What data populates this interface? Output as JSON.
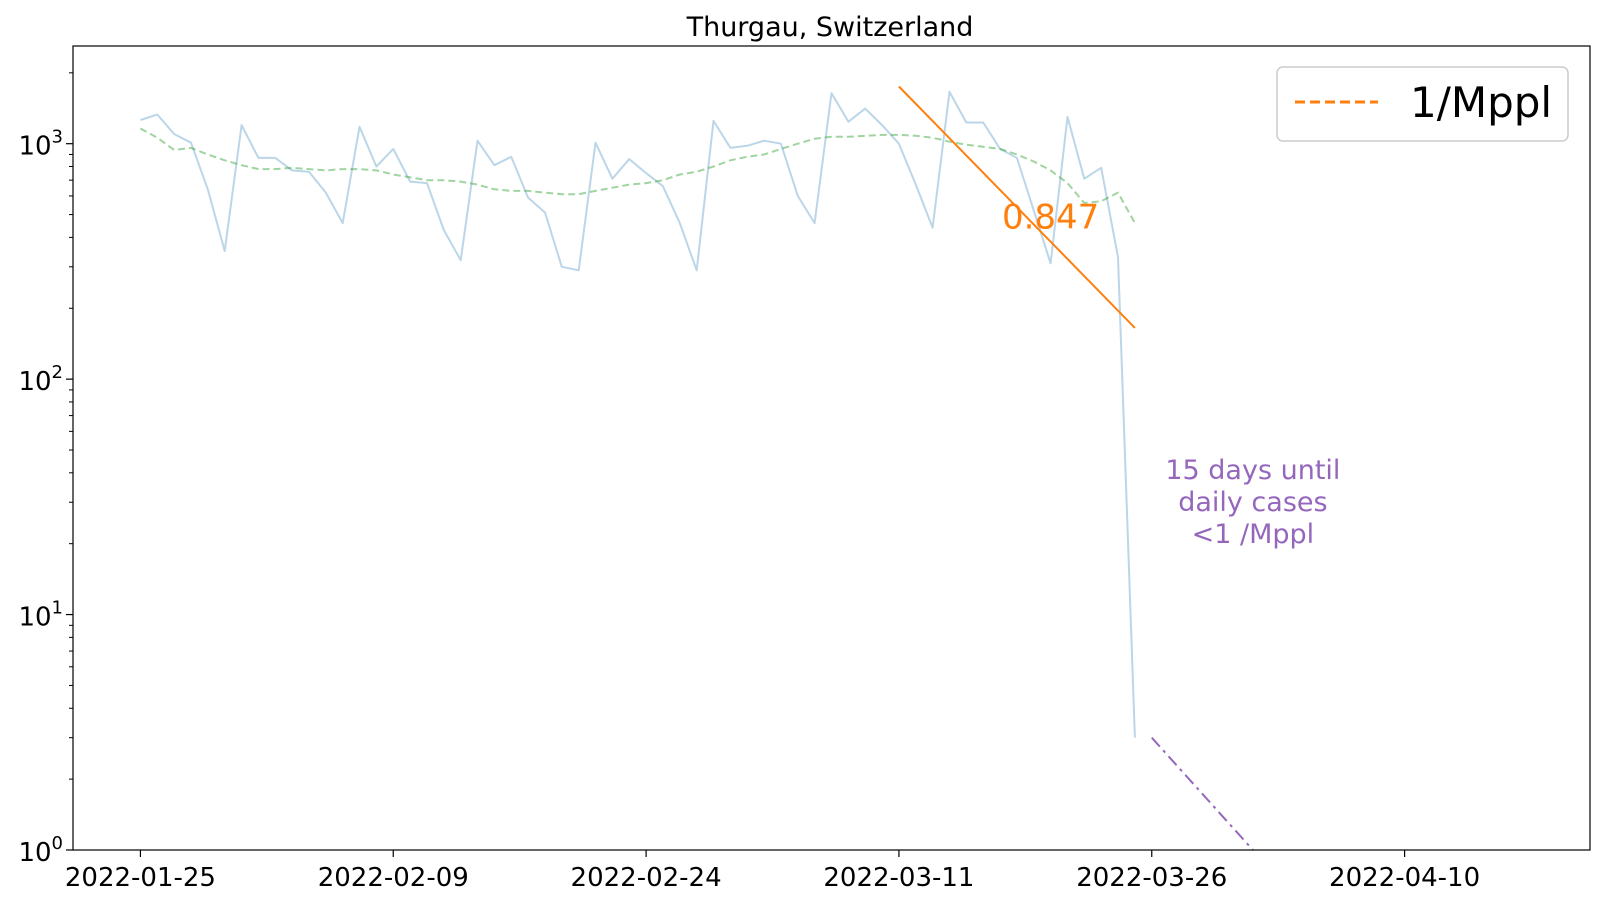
{
  "chart_data": {
    "type": "line",
    "title": "Thurgau, Switzerland",
    "xlabel": "",
    "ylabel": "",
    "y_scale": "log",
    "ylim": [
      1,
      2600
    ],
    "xlim": [
      "2022-01-21",
      "2022-04-21"
    ],
    "grid": false,
    "x_ticks": [
      "2022-01-25",
      "2022-02-09",
      "2022-02-24",
      "2022-03-11",
      "2022-03-26",
      "2022-04-10"
    ],
    "y_ticks": [
      {
        "value": 1,
        "base": "10",
        "exp": "0"
      },
      {
        "value": 10,
        "base": "10",
        "exp": "1"
      },
      {
        "value": 100,
        "base": "10",
        "exp": "2"
      },
      {
        "value": 1000,
        "base": "10",
        "exp": "3"
      }
    ],
    "legend": {
      "position": "top-right",
      "entries": [
        {
          "label": "1/Mppl",
          "color": "#ff7f0e",
          "style": "dashed"
        }
      ]
    },
    "series": [
      {
        "role": "daily cases",
        "color": "#1f77b4",
        "opacity": 0.3,
        "style": "solid",
        "points": [
          [
            "2022-01-25",
            1260
          ],
          [
            "2022-01-26",
            1330
          ],
          [
            "2022-01-27",
            1100
          ],
          [
            "2022-01-28",
            1010
          ],
          [
            "2022-01-29",
            640
          ],
          [
            "2022-01-30",
            350
          ],
          [
            "2022-01-31",
            1200
          ],
          [
            "2022-02-01",
            870
          ],
          [
            "2022-02-02",
            870
          ],
          [
            "2022-02-03",
            770
          ],
          [
            "2022-02-04",
            760
          ],
          [
            "2022-02-05",
            620
          ],
          [
            "2022-02-06",
            460
          ],
          [
            "2022-02-07",
            1180
          ],
          [
            "2022-02-08",
            800
          ],
          [
            "2022-02-09",
            950
          ],
          [
            "2022-02-10",
            690
          ],
          [
            "2022-02-11",
            680
          ],
          [
            "2022-02-12",
            430
          ],
          [
            "2022-02-13",
            320
          ],
          [
            "2022-02-14",
            1030
          ],
          [
            "2022-02-15",
            810
          ],
          [
            "2022-02-16",
            880
          ],
          [
            "2022-02-17",
            590
          ],
          [
            "2022-02-18",
            510
          ],
          [
            "2022-02-19",
            300
          ],
          [
            "2022-02-20",
            290
          ],
          [
            "2022-02-21",
            1010
          ],
          [
            "2022-02-22",
            710
          ],
          [
            "2022-02-23",
            860
          ],
          [
            "2022-02-24",
            750
          ],
          [
            "2022-02-25",
            660
          ],
          [
            "2022-02-26",
            460
          ],
          [
            "2022-02-27",
            290
          ],
          [
            "2022-02-28",
            1250
          ],
          [
            "2022-03-01",
            960
          ],
          [
            "2022-03-02",
            980
          ],
          [
            "2022-03-03",
            1030
          ],
          [
            "2022-03-04",
            1000
          ],
          [
            "2022-03-05",
            600
          ],
          [
            "2022-03-06",
            460
          ],
          [
            "2022-03-07",
            1640
          ],
          [
            "2022-03-08",
            1240
          ],
          [
            "2022-03-09",
            1410
          ],
          [
            "2022-03-10",
            1200
          ],
          [
            "2022-03-11",
            1000
          ],
          [
            "2022-03-12",
            670
          ],
          [
            "2022-03-13",
            440
          ],
          [
            "2022-03-14",
            1660
          ],
          [
            "2022-03-15",
            1230
          ],
          [
            "2022-03-16",
            1230
          ],
          [
            "2022-03-17",
            950
          ],
          [
            "2022-03-18",
            870
          ],
          [
            "2022-03-19",
            520
          ],
          [
            "2022-03-20",
            310
          ],
          [
            "2022-03-21",
            1300
          ],
          [
            "2022-03-22",
            710
          ],
          [
            "2022-03-23",
            790
          ],
          [
            "2022-03-24",
            330
          ],
          [
            "2022-03-25",
            3
          ]
        ]
      },
      {
        "role": "7-day average",
        "color": "#2ca02c",
        "opacity": 0.45,
        "style": "dashed",
        "points": [
          [
            "2022-01-25",
            1160
          ],
          [
            "2022-01-26",
            1060
          ],
          [
            "2022-01-27",
            940
          ],
          [
            "2022-01-28",
            960
          ],
          [
            "2022-01-29",
            900
          ],
          [
            "2022-01-30",
            850
          ],
          [
            "2022-01-31",
            810
          ],
          [
            "2022-02-01",
            780
          ],
          [
            "2022-02-02",
            780
          ],
          [
            "2022-02-03",
            790
          ],
          [
            "2022-02-04",
            780
          ],
          [
            "2022-02-05",
            770
          ],
          [
            "2022-02-06",
            780
          ],
          [
            "2022-02-07",
            780
          ],
          [
            "2022-02-08",
            770
          ],
          [
            "2022-02-09",
            740
          ],
          [
            "2022-02-10",
            720
          ],
          [
            "2022-02-11",
            700
          ],
          [
            "2022-02-12",
            700
          ],
          [
            "2022-02-13",
            690
          ],
          [
            "2022-02-14",
            670
          ],
          [
            "2022-02-15",
            640
          ],
          [
            "2022-02-16",
            630
          ],
          [
            "2022-02-17",
            630
          ],
          [
            "2022-02-18",
            620
          ],
          [
            "2022-02-19",
            610
          ],
          [
            "2022-02-20",
            610
          ],
          [
            "2022-02-21",
            630
          ],
          [
            "2022-02-22",
            650
          ],
          [
            "2022-02-23",
            670
          ],
          [
            "2022-02-24",
            680
          ],
          [
            "2022-02-25",
            700
          ],
          [
            "2022-02-26",
            740
          ],
          [
            "2022-02-27",
            760
          ],
          [
            "2022-02-28",
            800
          ],
          [
            "2022-03-01",
            850
          ],
          [
            "2022-03-02",
            880
          ],
          [
            "2022-03-03",
            900
          ],
          [
            "2022-03-04",
            950
          ],
          [
            "2022-03-05",
            1000
          ],
          [
            "2022-03-06",
            1050
          ],
          [
            "2022-03-07",
            1070
          ],
          [
            "2022-03-08",
            1070
          ],
          [
            "2022-03-09",
            1080
          ],
          [
            "2022-03-10",
            1090
          ],
          [
            "2022-03-11",
            1090
          ],
          [
            "2022-03-12",
            1080
          ],
          [
            "2022-03-13",
            1060
          ],
          [
            "2022-03-14",
            1020
          ],
          [
            "2022-03-15",
            990
          ],
          [
            "2022-03-16",
            970
          ],
          [
            "2022-03-17",
            950
          ],
          [
            "2022-03-18",
            900
          ],
          [
            "2022-03-19",
            840
          ],
          [
            "2022-03-20",
            770
          ],
          [
            "2022-03-21",
            680
          ],
          [
            "2022-03-22",
            560
          ],
          [
            "2022-03-23",
            570
          ],
          [
            "2022-03-24",
            620
          ],
          [
            "2022-03-25",
            460
          ]
        ]
      },
      {
        "role": "fit",
        "color": "#ff7f0e",
        "opacity": 1,
        "style": "solid",
        "points": [
          [
            "2022-03-11",
            1750
          ],
          [
            "2022-03-25",
            165
          ]
        ]
      },
      {
        "role": "projection",
        "color": "#9467bd",
        "opacity": 1,
        "style": "dashdot",
        "points": [
          [
            "2022-03-26",
            3
          ],
          [
            "2022-04-01",
            1
          ]
        ]
      }
    ],
    "annotations": [
      {
        "text": "0.847",
        "x": "2022-03-20",
        "y": 500,
        "color": "#ff7f0e",
        "size": "large"
      },
      {
        "lines": [
          "15 days until",
          "daily cases",
          "<1 /Mppl"
        ],
        "x": "2022-04-01",
        "y": 30,
        "color": "#9467bd",
        "size": "medium"
      }
    ]
  }
}
